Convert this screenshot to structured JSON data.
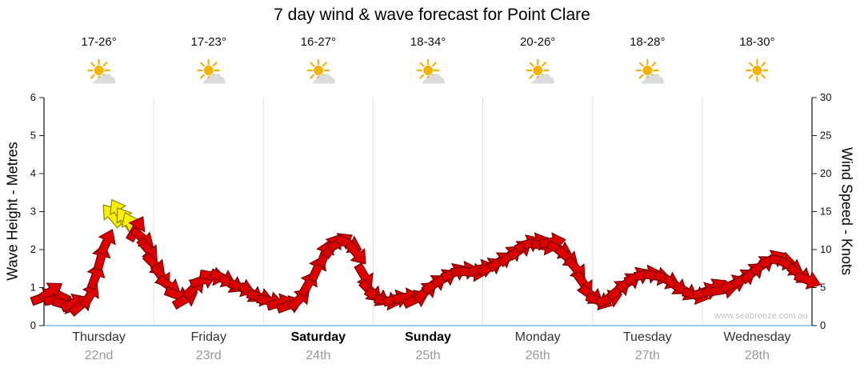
{
  "title": "7 day wind & wave forecast for Point Clare",
  "watermark": "www.seabreeze.com.au",
  "days": [
    {
      "name": "Thursday",
      "date": "22nd",
      "temp": "17-26°",
      "icon": "sun-cloud",
      "bold": false
    },
    {
      "name": "Friday",
      "date": "23rd",
      "temp": "17-23°",
      "icon": "sun-cloud",
      "bold": false
    },
    {
      "name": "Saturday",
      "date": "24th",
      "temp": "16-27°",
      "icon": "sun-cloud",
      "bold": true
    },
    {
      "name": "Sunday",
      "date": "25th",
      "temp": "18-34°",
      "icon": "sun-cloud",
      "bold": true
    },
    {
      "name": "Monday",
      "date": "26th",
      "temp": "20-26°",
      "icon": "sun-cloud",
      "bold": false
    },
    {
      "name": "Tuesday",
      "date": "27th",
      "temp": "18-28°",
      "icon": "sun-cloud",
      "bold": false
    },
    {
      "name": "Wednesday",
      "date": "28th",
      "temp": "18-30°",
      "icon": "sun",
      "bold": false
    }
  ],
  "chart_data": {
    "type": "area",
    "title": "7 day wind & wave forecast for Point Clare",
    "left_axis": {
      "label": "Wave Height - Metres",
      "min": 0,
      "max": 6,
      "ticks": [
        0,
        1,
        2,
        3,
        4,
        5,
        6
      ]
    },
    "right_axis": {
      "label": "Wind Speed - Knots",
      "min": 0,
      "max": 30,
      "ticks": [
        0,
        5,
        10,
        15,
        20,
        25,
        30
      ]
    },
    "x_categories": [
      "Thursday 22nd",
      "Friday 23rd",
      "Saturday 24th",
      "Sunday 25th",
      "Monday 26th",
      "Tuesday 27th",
      "Wednesday 28th"
    ],
    "colors": {
      "arrow": "#dd0000",
      "arrow_outline": "#7a0000",
      "strong_arrow": "#ffee00",
      "strong_outline": "#8a8a00",
      "baseline": "#99ccee",
      "grid": "#e2e2e2",
      "axis": "#222222"
    },
    "points": [
      {
        "t": 0.0,
        "h": 0.75,
        "d": -20
      },
      {
        "t": 0.06,
        "h": 0.9,
        "d": -35
      },
      {
        "t": 0.12,
        "h": 0.7,
        "d": -10
      },
      {
        "t": 0.2,
        "h": 0.55,
        "d": 15
      },
      {
        "t": 0.27,
        "h": 0.6,
        "d": -25
      },
      {
        "t": 0.34,
        "h": 0.55,
        "d": -40
      },
      {
        "t": 0.42,
        "h": 0.8,
        "d": -60
      },
      {
        "t": 0.47,
        "h": 1.3,
        "d": -70
      },
      {
        "t": 0.52,
        "h": 1.8,
        "d": -75
      },
      {
        "t": 0.57,
        "h": 2.2,
        "d": -65
      },
      {
        "t": 0.62,
        "h": 2.9,
        "d": -130,
        "s": true
      },
      {
        "t": 0.68,
        "h": 3.0,
        "d": -120,
        "s": true
      },
      {
        "t": 0.74,
        "h": 2.8,
        "d": -125,
        "s": true
      },
      {
        "t": 0.79,
        "h": 2.65,
        "d": -115,
        "s": true
      },
      {
        "t": 0.84,
        "h": 2.55,
        "d": -60
      },
      {
        "t": 0.9,
        "h": 2.3,
        "d": 40
      },
      {
        "t": 0.95,
        "h": 2.0,
        "d": 50
      },
      {
        "t": 1.01,
        "h": 1.6,
        "d": 45
      },
      {
        "t": 1.07,
        "h": 1.3,
        "d": 55
      },
      {
        "t": 1.14,
        "h": 1.05,
        "d": 35
      },
      {
        "t": 1.22,
        "h": 0.8,
        "d": 20
      },
      {
        "t": 1.29,
        "h": 0.7,
        "d": -30
      },
      {
        "t": 1.37,
        "h": 1.0,
        "d": -45
      },
      {
        "t": 1.45,
        "h": 1.2,
        "d": -20
      },
      {
        "t": 1.54,
        "h": 1.3,
        "d": 10
      },
      {
        "t": 1.63,
        "h": 1.25,
        "d": 25
      },
      {
        "t": 1.71,
        "h": 1.1,
        "d": 30
      },
      {
        "t": 1.8,
        "h": 1.0,
        "d": 20
      },
      {
        "t": 1.89,
        "h": 0.85,
        "d": 35
      },
      {
        "t": 1.97,
        "h": 0.75,
        "d": 15
      },
      {
        "t": 2.06,
        "h": 0.65,
        "d": 10
      },
      {
        "t": 2.15,
        "h": 0.6,
        "d": -15
      },
      {
        "t": 2.24,
        "h": 0.55,
        "d": -20
      },
      {
        "t": 2.33,
        "h": 0.7,
        "d": -45
      },
      {
        "t": 2.41,
        "h": 1.1,
        "d": -60
      },
      {
        "t": 2.49,
        "h": 1.5,
        "d": -65
      },
      {
        "t": 2.56,
        "h": 1.9,
        "d": -70
      },
      {
        "t": 2.63,
        "h": 2.1,
        "d": -55
      },
      {
        "t": 2.7,
        "h": 2.2,
        "d": -30
      },
      {
        "t": 2.78,
        "h": 2.15,
        "d": 25
      },
      {
        "t": 2.85,
        "h": 1.9,
        "d": 50
      },
      {
        "t": 2.92,
        "h": 1.3,
        "d": 60
      },
      {
        "t": 2.98,
        "h": 0.9,
        "d": 45
      },
      {
        "t": 3.04,
        "h": 0.75,
        "d": 30
      },
      {
        "t": 3.13,
        "h": 0.65,
        "d": 10
      },
      {
        "t": 3.21,
        "h": 0.7,
        "d": -15
      },
      {
        "t": 3.3,
        "h": 0.75,
        "d": -10
      },
      {
        "t": 3.39,
        "h": 0.7,
        "d": -25
      },
      {
        "t": 3.48,
        "h": 0.9,
        "d": -40
      },
      {
        "t": 3.56,
        "h": 1.1,
        "d": -35
      },
      {
        "t": 3.65,
        "h": 1.25,
        "d": -30
      },
      {
        "t": 3.74,
        "h": 1.4,
        "d": -25
      },
      {
        "t": 3.83,
        "h": 1.45,
        "d": -10
      },
      {
        "t": 3.91,
        "h": 1.4,
        "d": 5
      },
      {
        "t": 3.99,
        "h": 1.5,
        "d": -15
      },
      {
        "t": 4.07,
        "h": 1.55,
        "d": -30
      },
      {
        "t": 4.16,
        "h": 1.7,
        "d": -35
      },
      {
        "t": 4.25,
        "h": 1.85,
        "d": -40
      },
      {
        "t": 4.34,
        "h": 2.0,
        "d": -35
      },
      {
        "t": 4.41,
        "h": 2.15,
        "d": -25
      },
      {
        "t": 4.48,
        "h": 2.2,
        "d": -15
      },
      {
        "t": 4.56,
        "h": 2.1,
        "d": 10
      },
      {
        "t": 4.63,
        "h": 2.2,
        "d": -10
      },
      {
        "t": 4.7,
        "h": 2.0,
        "d": 25
      },
      {
        "t": 4.77,
        "h": 1.8,
        "d": 40
      },
      {
        "t": 4.85,
        "h": 1.5,
        "d": 50
      },
      {
        "t": 4.92,
        "h": 1.1,
        "d": 55
      },
      {
        "t": 4.99,
        "h": 0.8,
        "d": 35
      },
      {
        "t": 5.06,
        "h": 0.65,
        "d": 20
      },
      {
        "t": 5.15,
        "h": 0.7,
        "d": -20
      },
      {
        "t": 5.24,
        "h": 0.95,
        "d": -40
      },
      {
        "t": 5.33,
        "h": 1.15,
        "d": -35
      },
      {
        "t": 5.41,
        "h": 1.3,
        "d": -25
      },
      {
        "t": 5.5,
        "h": 1.35,
        "d": -10
      },
      {
        "t": 5.59,
        "h": 1.3,
        "d": 10
      },
      {
        "t": 5.68,
        "h": 1.2,
        "d": 25
      },
      {
        "t": 5.76,
        "h": 1.05,
        "d": 35
      },
      {
        "t": 5.85,
        "h": 0.9,
        "d": 30
      },
      {
        "t": 5.94,
        "h": 0.8,
        "d": 15
      },
      {
        "t": 6.03,
        "h": 0.9,
        "d": -20
      },
      {
        "t": 6.11,
        "h": 1.0,
        "d": -30
      },
      {
        "t": 6.2,
        "h": 0.95,
        "d": -10
      },
      {
        "t": 6.29,
        "h": 1.1,
        "d": -25
      },
      {
        "t": 6.38,
        "h": 1.25,
        "d": -35
      },
      {
        "t": 6.46,
        "h": 1.4,
        "d": -40
      },
      {
        "t": 6.55,
        "h": 1.6,
        "d": -35
      },
      {
        "t": 6.64,
        "h": 1.75,
        "d": -25
      },
      {
        "t": 6.73,
        "h": 1.7,
        "d": 10
      },
      {
        "t": 6.81,
        "h": 1.55,
        "d": 30
      },
      {
        "t": 6.89,
        "h": 1.35,
        "d": 35
      },
      {
        "t": 6.96,
        "h": 1.2,
        "d": 20
      }
    ]
  }
}
